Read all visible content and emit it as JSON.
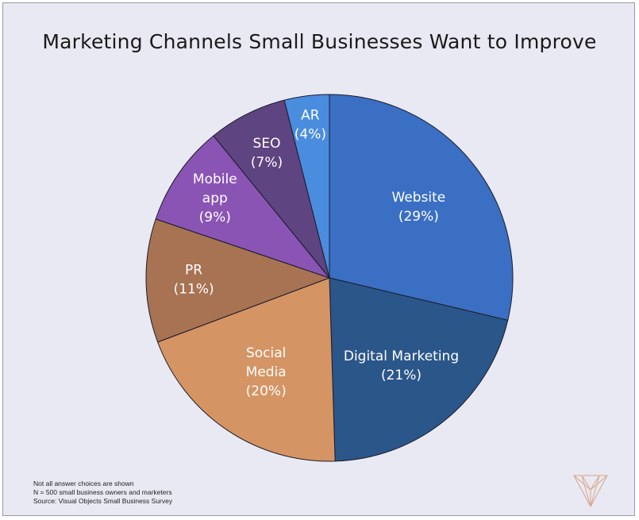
{
  "chart_data": {
    "type": "pie",
    "title": "Marketing Channels Small Businesses Want to Improve",
    "slices": [
      {
        "label_lines": [
          "Website",
          "(29%)"
        ],
        "value": 29,
        "color": "#3a6fc4"
      },
      {
        "label_lines": [
          "Digital Marketing",
          "(21%)"
        ],
        "value": 21,
        "color": "#2b568a"
      },
      {
        "label_lines": [
          "Social",
          "Media",
          "(20%)"
        ],
        "value": 20,
        "color": "#d59464"
      },
      {
        "label_lines": [
          "PR",
          "(11%)"
        ],
        "value": 11,
        "color": "#a77353"
      },
      {
        "label_lines": [
          "Mobile",
          "app",
          "(9%)"
        ],
        "value": 9,
        "color": "#8a54b5"
      },
      {
        "label_lines": [
          "SEO",
          "(7%)"
        ],
        "value": 7,
        "color": "#5e4480"
      },
      {
        "label_lines": [
          "AR",
          "(4%)"
        ],
        "value": 4,
        "color": "#4a8ddf"
      }
    ]
  },
  "notes": [
    "Not all answer choices are shown",
    "N = 500 small business owners and marketers",
    "Source: Visual Objects Small Business Survey"
  ],
  "colors": {
    "background": "#e9e9f3",
    "logo": "#d9a487"
  }
}
